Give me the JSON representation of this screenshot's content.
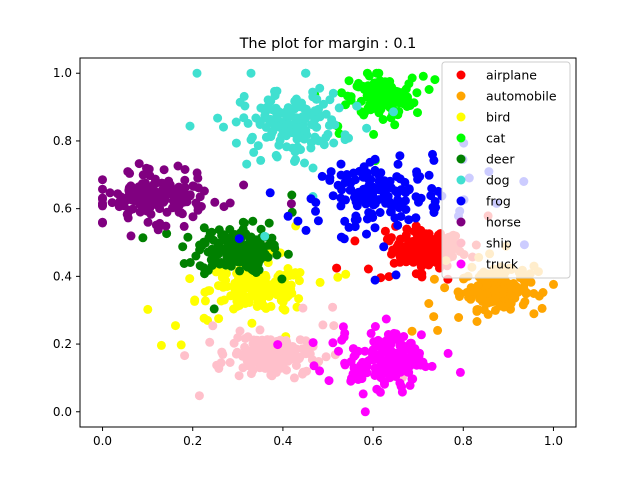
{
  "chart_data": {
    "type": "scatter",
    "title": "The plot for margin : 0.1",
    "xlabel": "",
    "ylabel": "",
    "xlim": [
      -0.05,
      1.05
    ],
    "ylim": [
      -0.045,
      1.045
    ],
    "xticks": [
      {
        "value": 0.0,
        "label": "0.0"
      },
      {
        "value": 0.2,
        "label": "0.2"
      },
      {
        "value": 0.4,
        "label": "0.4"
      },
      {
        "value": 0.6,
        "label": "0.6"
      },
      {
        "value": 0.8,
        "label": "0.8"
      },
      {
        "value": 1.0,
        "label": "1.0"
      }
    ],
    "yticks": [
      {
        "value": 0.0,
        "label": "0.0"
      },
      {
        "value": 0.2,
        "label": "0.2"
      },
      {
        "value": 0.4,
        "label": "0.4"
      },
      {
        "value": 0.6,
        "label": "0.6"
      },
      {
        "value": 0.8,
        "label": "0.8"
      },
      {
        "value": 1.0,
        "label": "1.0"
      }
    ],
    "grid": false,
    "legend_position": "top-right",
    "series": [
      {
        "name": "airplane",
        "color": "#ff0000",
        "center": [
          0.72,
          0.48
        ],
        "spread": [
          0.07,
          0.05
        ]
      },
      {
        "name": "automobile",
        "color": "#ffa500",
        "center": [
          0.87,
          0.36
        ],
        "spread": [
          0.07,
          0.05
        ]
      },
      {
        "name": "bird",
        "color": "#ffff00",
        "center": [
          0.35,
          0.36
        ],
        "spread": [
          0.1,
          0.06
        ]
      },
      {
        "name": "cat",
        "color": "#00ff00",
        "center": [
          0.62,
          0.93
        ],
        "spread": [
          0.06,
          0.05
        ]
      },
      {
        "name": "deer",
        "color": "#008000",
        "center": [
          0.29,
          0.48
        ],
        "spread": [
          0.07,
          0.06
        ]
      },
      {
        "name": "dog",
        "color": "#40e0d0",
        "center": [
          0.42,
          0.85
        ],
        "spread": [
          0.1,
          0.08
        ]
      },
      {
        "name": "frog",
        "color": "#0000ff",
        "center": [
          0.62,
          0.64
        ],
        "spread": [
          0.12,
          0.08
        ]
      },
      {
        "name": "horse",
        "color": "#800080",
        "center": [
          0.12,
          0.63
        ],
        "spread": [
          0.1,
          0.06
        ]
      },
      {
        "name": "ship",
        "color": "#ffc0cb",
        "center": [
          0.37,
          0.17
        ],
        "spread": [
          0.08,
          0.05
        ]
      },
      {
        "name": "truck",
        "color": "#ff00ff",
        "center": [
          0.63,
          0.15
        ],
        "spread": [
          0.07,
          0.07
        ]
      }
    ]
  }
}
